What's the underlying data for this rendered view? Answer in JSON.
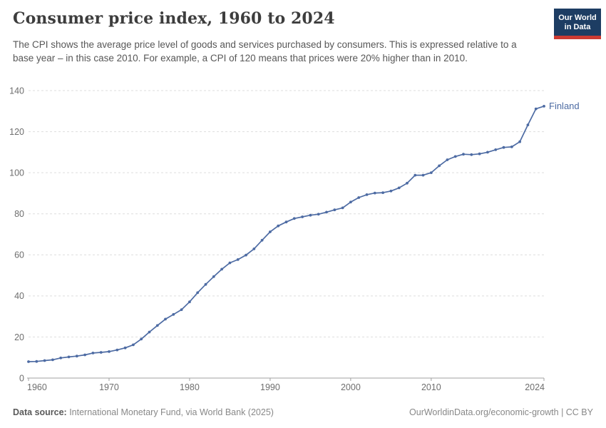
{
  "header": {
    "title": "Consumer price index, 1960 to 2024",
    "subtitle": "The CPI shows the average price level of goods and services purchased by consumers. This is expressed relative to a base year – in this case 2010. For example, a CPI of 120 means that prices were 20% higher than in 2010.",
    "logo": {
      "line1": "Our World",
      "line2": "in Data"
    }
  },
  "chart_data": {
    "type": "line",
    "title": "Consumer price index, 1960 to 2024",
    "xlabel": "",
    "ylabel": "",
    "xlim": [
      1960,
      2024
    ],
    "ylim": [
      0,
      140
    ],
    "x_ticks": [
      1960,
      1970,
      1980,
      1990,
      2000,
      2010,
      2024
    ],
    "y_ticks": [
      0,
      20,
      40,
      60,
      80,
      100,
      120,
      140
    ],
    "grid": "horizontal-dashed",
    "legend_position": "end-of-line-label",
    "x": [
      1960,
      1961,
      1962,
      1963,
      1964,
      1965,
      1966,
      1967,
      1968,
      1969,
      1970,
      1971,
      1972,
      1973,
      1974,
      1975,
      1976,
      1977,
      1978,
      1979,
      1980,
      1981,
      1982,
      1983,
      1984,
      1985,
      1986,
      1987,
      1988,
      1989,
      1990,
      1991,
      1992,
      1993,
      1994,
      1995,
      1996,
      1997,
      1998,
      1999,
      2000,
      2001,
      2002,
      2003,
      2004,
      2005,
      2006,
      2007,
      2008,
      2009,
      2010,
      2011,
      2012,
      2013,
      2014,
      2015,
      2016,
      2017,
      2018,
      2019,
      2020,
      2021,
      2022,
      2023,
      2024
    ],
    "series": [
      {
        "name": "Finland",
        "end_label": "Finland",
        "color": "#4d6ba3",
        "values": [
          8.0,
          8.1,
          8.5,
          8.9,
          9.8,
          10.3,
          10.7,
          11.3,
          12.2,
          12.5,
          12.9,
          13.7,
          14.7,
          16.2,
          19.0,
          22.4,
          25.6,
          28.7,
          31.0,
          33.3,
          37.1,
          41.6,
          45.6,
          49.4,
          53.0,
          56.1,
          57.7,
          59.9,
          62.9,
          67.1,
          71.2,
          74.1,
          76.0,
          77.7,
          78.5,
          79.3,
          79.8,
          80.8,
          81.9,
          82.9,
          85.7,
          87.9,
          89.3,
          90.1,
          90.3,
          91.1,
          92.6,
          94.9,
          98.8,
          98.8,
          100.0,
          103.4,
          106.3,
          107.9,
          109.0,
          108.8,
          109.2,
          110.0,
          111.2,
          112.3,
          112.6,
          115.1,
          123.3,
          131.1,
          132.4
        ]
      }
    ]
  },
  "footer": {
    "source_label": "Data source:",
    "source_text": " International Monetary Fund, via World Bank (2025)",
    "credit": "OurWorldinData.org/economic-growth | CC BY"
  },
  "colors": {
    "series": "#4d6ba3",
    "logo_bg": "#1d3d63",
    "logo_stripe": "#cc3b33",
    "grid": "#dddddd",
    "axis": "#a0a0a0",
    "tick_label": "#6e6e6e",
    "title": "#3d3d3d",
    "subtitle": "#575757"
  }
}
